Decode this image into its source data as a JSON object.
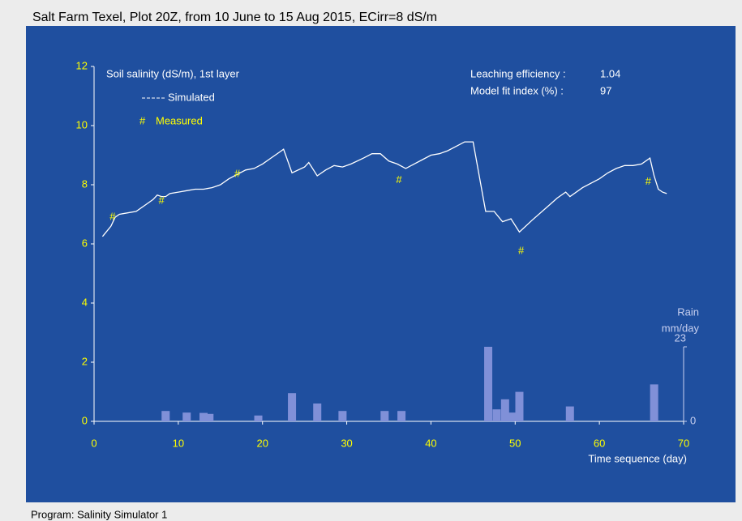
{
  "chart_data": {
    "type": "line",
    "title": "Salt Farm Texel, Plot 20Z, from 10 June to 15 Aug 2015, ECirr=8 dS/m",
    "annotation": "Soil salinity (dS/m), 1st layer",
    "stats": [
      {
        "label": "Leaching efficiency :",
        "value": 1.04
      },
      {
        "label": "Model fit index (%) :",
        "value": 97
      }
    ],
    "xlabel": "Time sequence (day)",
    "y2label": [
      "Rain",
      "mm/day"
    ],
    "xlim": [
      0,
      70
    ],
    "xticks": [
      0,
      10,
      20,
      30,
      40,
      50,
      60,
      70
    ],
    "ylim": [
      0,
      12
    ],
    "yticks": [
      0,
      2,
      4,
      6,
      8,
      10,
      12
    ],
    "y2lim": [
      0,
      23
    ],
    "y2ticks": [
      0,
      23
    ],
    "series": [
      {
        "name": "Simulated",
        "type": "line",
        "color": "#ffffff",
        "x": [
          1,
          2,
          2.5,
          3,
          4,
          5,
          6,
          7,
          7.5,
          8,
          8.5,
          9,
          10,
          11,
          12,
          13,
          14,
          15,
          16,
          17,
          18,
          19,
          20,
          21,
          22,
          22.5,
          23.5,
          25,
          25.5,
          26.5,
          27.5,
          28.5,
          29.5,
          30.5,
          32,
          33,
          34,
          35,
          36,
          37,
          38,
          39,
          40,
          41,
          42,
          43,
          44,
          45,
          46.5,
          47.5,
          48.5,
          49.5,
          50.5,
          52,
          54,
          55,
          56,
          56.5,
          58,
          60,
          61,
          62,
          63,
          64,
          65,
          66,
          66.5,
          67,
          67.5,
          68
        ],
        "values": [
          6.25,
          6.6,
          6.9,
          7.0,
          7.05,
          7.1,
          7.3,
          7.5,
          7.65,
          7.6,
          7.6,
          7.7,
          7.75,
          7.8,
          7.85,
          7.85,
          7.9,
          8.0,
          8.2,
          8.35,
          8.5,
          8.55,
          8.7,
          8.9,
          9.1,
          9.2,
          8.4,
          8.6,
          8.75,
          8.3,
          8.5,
          8.65,
          8.6,
          8.7,
          8.9,
          9.05,
          9.05,
          8.8,
          8.7,
          8.55,
          8.7,
          8.85,
          9.0,
          9.05,
          9.15,
          9.3,
          9.45,
          9.45,
          7.1,
          7.1,
          6.75,
          6.85,
          6.4,
          6.8,
          7.3,
          7.55,
          7.75,
          7.6,
          7.9,
          8.2,
          8.4,
          8.55,
          8.65,
          8.65,
          8.7,
          8.9,
          8.3,
          7.85,
          7.75,
          7.7
        ]
      },
      {
        "name": "Measured",
        "type": "scatter",
        "marker": "#",
        "color": "#ffff00",
        "x": [
          2.2,
          8,
          17,
          36.2,
          50.7,
          65.8
        ],
        "values": [
          6.9,
          7.45,
          8.35,
          8.15,
          5.75,
          8.1
        ]
      },
      {
        "type": "bar",
        "axis": "y2",
        "color": "#8090d8",
        "x": [
          8.5,
          11,
          13,
          13.7,
          19.5,
          23.5,
          26.5,
          29.5,
          34.5,
          36.5,
          46.8,
          47.8,
          48.8,
          49.6,
          50.5,
          56.5,
          66.5
        ],
        "values": [
          3.2,
          2.7,
          2.6,
          2.3,
          1.8,
          8.7,
          5.5,
          3.2,
          3.2,
          3.2,
          23,
          3.7,
          6.8,
          2.7,
          9.1,
          4.6,
          11.4
        ]
      }
    ]
  },
  "footer": "Program: Salinity Simulator 1"
}
